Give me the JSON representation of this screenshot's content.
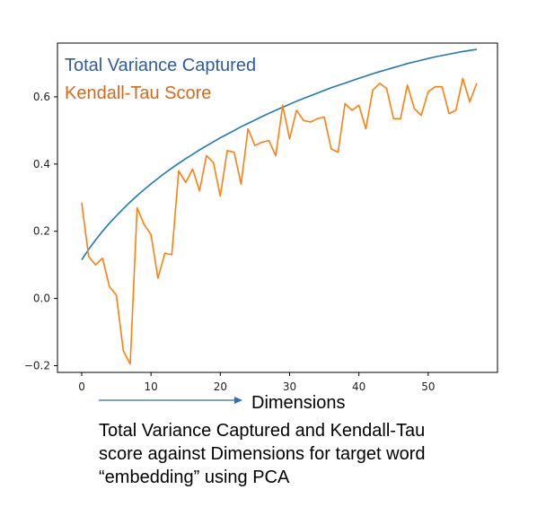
{
  "chart_data": {
    "type": "line",
    "xlim": [
      -3.5,
      60
    ],
    "ylim": [
      -0.22,
      0.76
    ],
    "xticks": [
      0,
      10,
      20,
      30,
      40,
      50
    ],
    "yticks": [
      -0.2,
      0.0,
      0.2,
      0.4,
      0.6
    ],
    "grid": false,
    "legend_position": "top-left",
    "xlabel": "Dimensions",
    "caption_lines": [
      "Total Variance Captured and Kendall-Tau",
      "score against Dimensions for target word",
      "“embedding” using PCA"
    ],
    "series": [
      {
        "name": "Total Variance Captured",
        "color": "#1f77b4",
        "x": [
          0,
          1,
          2,
          3,
          4,
          5,
          6,
          7,
          8,
          9,
          10,
          11,
          12,
          13,
          14,
          15,
          16,
          17,
          18,
          19,
          20,
          21,
          22,
          23,
          24,
          25,
          26,
          27,
          28,
          29,
          30,
          31,
          32,
          33,
          34,
          35,
          36,
          37,
          38,
          39,
          40,
          41,
          42,
          43,
          44,
          45,
          46,
          47,
          48,
          49,
          50,
          51,
          52,
          53,
          54,
          55,
          56,
          57
        ],
        "values": [
          0.115,
          0.146,
          0.174,
          0.2,
          0.224,
          0.246,
          0.267,
          0.287,
          0.306,
          0.324,
          0.341,
          0.357,
          0.373,
          0.388,
          0.402,
          0.416,
          0.429,
          0.442,
          0.454,
          0.466,
          0.478,
          0.489,
          0.5,
          0.511,
          0.521,
          0.531,
          0.541,
          0.551,
          0.56,
          0.569,
          0.578,
          0.587,
          0.595,
          0.603,
          0.611,
          0.619,
          0.627,
          0.634,
          0.641,
          0.648,
          0.655,
          0.662,
          0.669,
          0.675,
          0.681,
          0.687,
          0.693,
          0.699,
          0.704,
          0.709,
          0.714,
          0.719,
          0.723,
          0.727,
          0.731,
          0.735,
          0.738,
          0.741
        ]
      },
      {
        "name": "Kendall-Tau Score",
        "color": "#ff7f0e",
        "x": [
          0,
          1,
          2,
          3,
          4,
          5,
          6,
          7,
          8,
          9,
          10,
          11,
          12,
          13,
          14,
          15,
          16,
          17,
          18,
          19,
          20,
          21,
          22,
          23,
          24,
          25,
          26,
          27,
          28,
          29,
          30,
          31,
          32,
          33,
          34,
          35,
          36,
          37,
          38,
          39,
          40,
          41,
          42,
          43,
          44,
          45,
          46,
          47,
          48,
          49,
          50,
          51,
          52,
          53,
          54,
          55,
          56,
          57
        ],
        "values": [
          0.285,
          0.125,
          0.1,
          0.12,
          0.035,
          0.01,
          -0.155,
          -0.195,
          0.27,
          0.22,
          0.19,
          0.06,
          0.135,
          0.13,
          0.38,
          0.345,
          0.385,
          0.32,
          0.425,
          0.405,
          0.305,
          0.44,
          0.435,
          0.34,
          0.505,
          0.455,
          0.465,
          0.47,
          0.425,
          0.575,
          0.475,
          0.56,
          0.53,
          0.525,
          0.535,
          0.54,
          0.445,
          0.435,
          0.58,
          0.56,
          0.575,
          0.505,
          0.62,
          0.64,
          0.625,
          0.535,
          0.535,
          0.635,
          0.565,
          0.545,
          0.615,
          0.63,
          0.63,
          0.55,
          0.56,
          0.655,
          0.585,
          0.64
        ]
      }
    ]
  }
}
